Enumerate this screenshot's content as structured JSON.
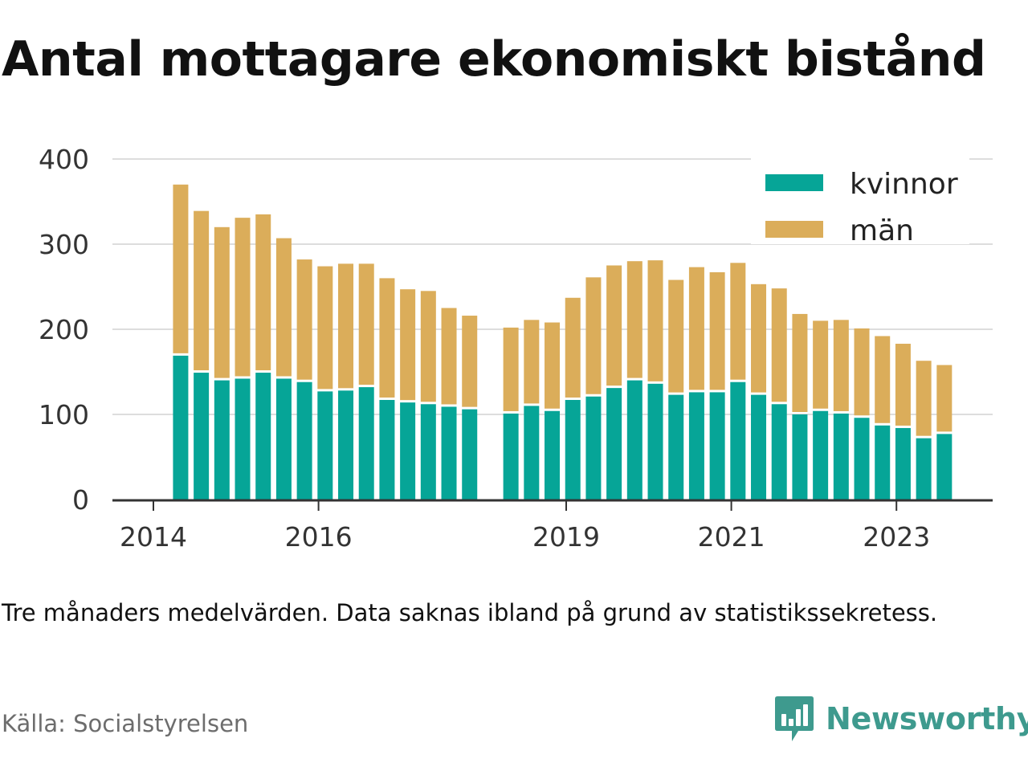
{
  "title": "Antal mottagare ekonomiskt bistånd",
  "note": "Tre månaders medelvärden. Data saknas ibland på grund av statistikssekretess.",
  "source": "Källa: Socialstyrelsen",
  "brand": {
    "name": "Newsworthy",
    "icon": "newsworthy-chart-bubble-icon",
    "color": "#3e9a8e"
  },
  "colors": {
    "kvinnor": "#06a597",
    "man": "#dbad5a",
    "grid": "#dddddd",
    "axis": "#333333"
  },
  "chart_data": {
    "type": "bar",
    "stacked": true,
    "ylim": [
      0,
      400
    ],
    "yticks": [
      0,
      100,
      200,
      300,
      400
    ],
    "xticks": [
      {
        "label": "2014",
        "x": 2014.0
      },
      {
        "label": "2016",
        "x": 2016.0
      },
      {
        "label": "2019",
        "x": 2019.0
      },
      {
        "label": "2021",
        "x": 2021.0
      },
      {
        "label": "2023",
        "x": 2023.0
      }
    ],
    "grid": true,
    "legend": "top-right",
    "x": [
      2014.33,
      2014.58,
      2014.83,
      2015.08,
      2015.33,
      2015.58,
      2015.83,
      2016.08,
      2016.33,
      2016.58,
      2016.83,
      2017.08,
      2017.33,
      2017.58,
      2017.83,
      2018.33,
      2018.58,
      2018.83,
      2019.08,
      2019.33,
      2019.58,
      2019.83,
      2020.08,
      2020.33,
      2020.58,
      2020.83,
      2021.08,
      2021.33,
      2021.58,
      2021.83,
      2022.08,
      2022.33,
      2022.58,
      2022.83,
      2023.08,
      2023.33,
      2023.58
    ],
    "series": [
      {
        "name": "kvinnor",
        "values": [
          169,
          149,
          140,
          142,
          149,
          142,
          138,
          127,
          128,
          132,
          117,
          114,
          112,
          109,
          106,
          101,
          110,
          104,
          117,
          121,
          131,
          140,
          136,
          123,
          126,
          126,
          138,
          123,
          112,
          100,
          104,
          101,
          96,
          87,
          84,
          72,
          77
        ]
      },
      {
        "name": "män",
        "values": [
          201,
          190,
          180,
          189,
          186,
          165,
          144,
          147,
          149,
          145,
          143,
          133,
          133,
          116,
          110,
          101,
          101,
          104,
          120,
          140,
          144,
          140,
          145,
          135,
          147,
          141,
          140,
          130,
          136,
          118,
          106,
          110,
          105,
          105,
          99,
          91,
          81
        ]
      }
    ]
  }
}
